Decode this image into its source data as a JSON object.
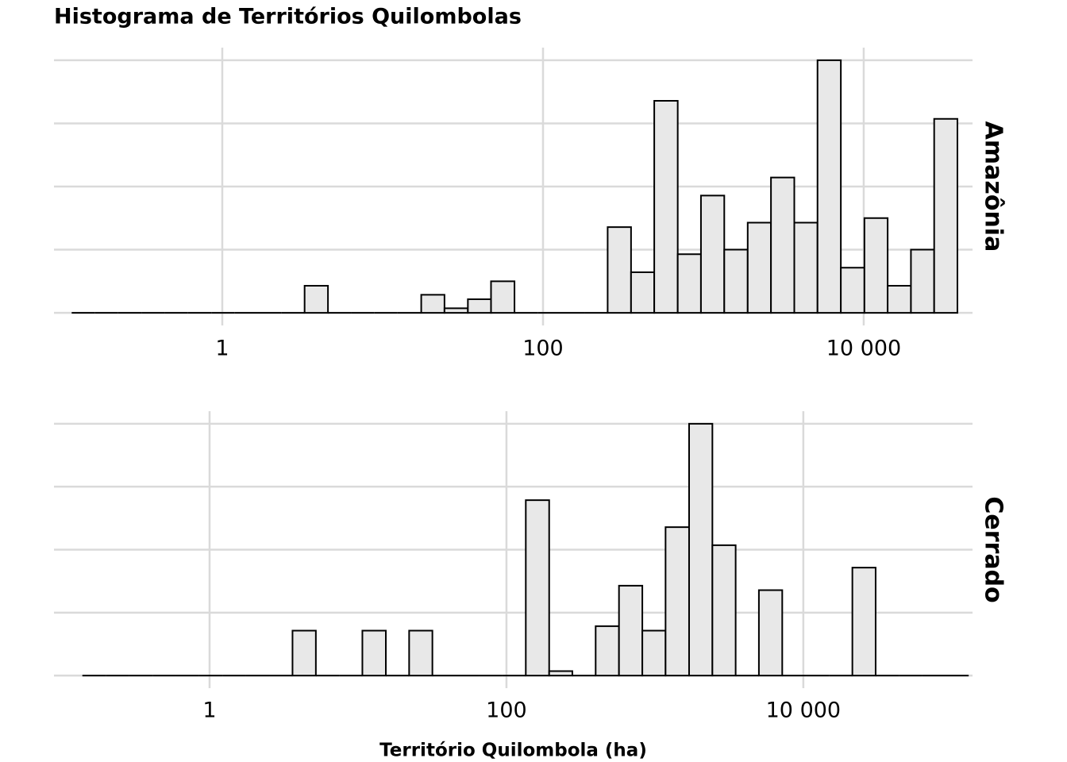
{
  "chart_data": [
    {
      "type": "histogram",
      "title": "Histograma de Territórios Quilombolas",
      "facet": "Amazônia",
      "bins": [
        0.115,
        0.16,
        0.224,
        0.313,
        0.438,
        0.611,
        0.855,
        1.19,
        1.67,
        2.33,
        3.26,
        4.56,
        6.37,
        8.9,
        12.4,
        17.4,
        24.3,
        34,
        47.4,
        66.4,
        92.7,
        130,
        181,
        253,
        354,
        494,
        692,
        966,
        1350,
        1890,
        2640,
        3690,
        5150,
        7200,
        10100,
        14100,
        19700,
        27500,
        38400
      ],
      "counts": [
        0,
        0,
        0,
        0,
        0,
        0,
        0,
        0,
        0,
        0,
        6,
        0,
        0,
        0,
        0,
        4,
        1,
        3,
        7,
        0,
        0,
        0,
        0,
        19,
        9,
        47,
        13,
        26,
        14,
        20,
        30,
        20,
        56,
        10,
        21,
        6,
        14,
        43
      ],
      "color": "#e8e8e8",
      "edge_color": "#000000",
      "log_x": true,
      "grid": true,
      "xlim": [
        0.0892,
        47700
      ],
      "xticks": [
        1,
        100,
        {
          "value": 10000,
          "label": "10 000"
        }
      ],
      "ylim": [
        -2.8,
        58.8
      ],
      "yticks": [
        0,
        14,
        28,
        42,
        56
      ]
    },
    {
      "type": "histogram",
      "facet": "Cerrado",
      "xlabel": "Território Quilombola (ha)",
      "bins": [
        0.139,
        0.2,
        0.287,
        0.413,
        0.593,
        0.851,
        1.22,
        1.75,
        2.52,
        3.62,
        5.2,
        7.46,
        10.7,
        15.4,
        22.1,
        31.7,
        45.5,
        65.4,
        94,
        135,
        194,
        278,
        399,
        573,
        823,
        1180,
        1700,
        2440,
        3500,
        5020,
        7210,
        10400,
        14900,
        21400,
        30700,
        44000,
        63200,
        90800,
        130000
      ],
      "counts": [
        0,
        0,
        0,
        0,
        0,
        0,
        0,
        0,
        0,
        10,
        0,
        0,
        10,
        0,
        10,
        0,
        0,
        0,
        0,
        39,
        1,
        0,
        11,
        20,
        10,
        33,
        56,
        29,
        0,
        19,
        0,
        0,
        0,
        24,
        0,
        0,
        0,
        0
      ],
      "color": "#e8e8e8",
      "edge_color": "#000000",
      "log_x": true,
      "grid": true,
      "xlim": [
        0.0895,
        138000
      ],
      "xticks": [
        1,
        100,
        {
          "value": 10000,
          "label": "10 000"
        }
      ],
      "ylim": [
        -2.8,
        58.8
      ],
      "yticks": [
        0,
        14,
        28,
        42,
        56
      ]
    }
  ]
}
